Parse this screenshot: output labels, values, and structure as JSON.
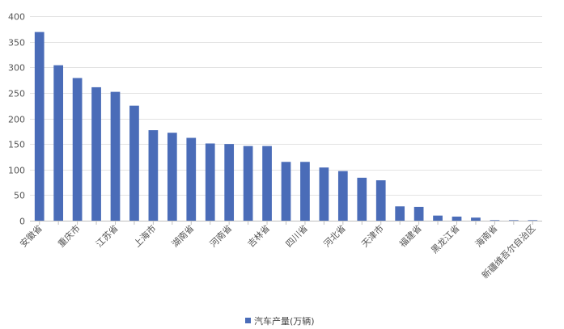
{
  "chart_data": {
    "type": "bar",
    "title": "",
    "xlabel": "",
    "ylabel": "",
    "ylim": [
      0,
      400
    ],
    "yticks": [
      0,
      50,
      100,
      150,
      200,
      250,
      300,
      350,
      400
    ],
    "grid": true,
    "legend_position": "bottom",
    "bar_color": "#4a6cb8",
    "categories": [
      "安徽省",
      "",
      "重庆市",
      "",
      "江苏省",
      "",
      "上海市",
      "",
      "湖南省",
      "",
      "河南省",
      "",
      "吉林省",
      "",
      "四川省",
      "",
      "河北省",
      "",
      "天津市",
      "",
      "福建省",
      "",
      "黑龙江省",
      "",
      "海南省",
      "",
      "新疆维吾尔自治区"
    ],
    "series": [
      {
        "name": "汽车产量(万辆)",
        "values": [
          369,
          304,
          279,
          261,
          252,
          225,
          177,
          172,
          162,
          151,
          150,
          146,
          146,
          115,
          115,
          104,
          97,
          84,
          79,
          28,
          27,
          10,
          8,
          6,
          1,
          0.7,
          0.3
        ]
      }
    ]
  }
}
